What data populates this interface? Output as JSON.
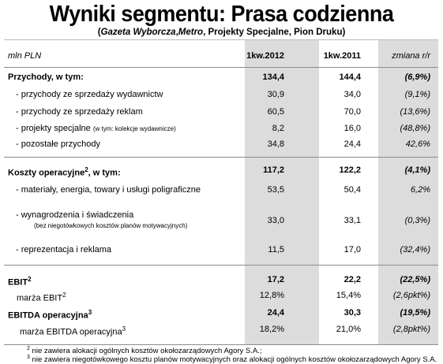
{
  "title": "Wyniki segmentu: Prasa codzienna",
  "subtitle": {
    "open": "(",
    "gw": "Gazeta Wyborcza",
    "sep1": ",",
    "metro": "Metro",
    "rest": ", Projekty Specjalne, Pion Druku)"
  },
  "header": {
    "unit": "mln PLN",
    "col1": "1kw.2012",
    "col2": "1kw.2011",
    "col3": "zmiana r/r"
  },
  "rows": {
    "przychody": {
      "label": "Przychody, w tym:",
      "v1": "134,4",
      "v2": "144,4",
      "v3": "(6,9%)"
    },
    "wydawnictw": {
      "label": "- przychody ze sprzedaży wydawnictw",
      "v1": "30,9",
      "v2": "34,0",
      "v3": "(9,1%)"
    },
    "reklam": {
      "label": "- przychody ze sprzedaży reklam",
      "v1": "60,5",
      "v2": "70,0",
      "v3": "(13,6%)"
    },
    "projekty": {
      "label": "- projekty specjalne",
      "note": "(w tym: kolekcje wydawnicze)",
      "v1": "8,2",
      "v2": "16,0",
      "v3": "(48,8%)"
    },
    "pozostale": {
      "label": "- pozostałe przychody",
      "v1": "34,8",
      "v2": "24,4",
      "v3": "42,6%"
    },
    "koszty": {
      "label": "Koszty operacyjne",
      "sup": "2",
      "label_tail": ", w tym:",
      "v1": "117,2",
      "v2": "122,2",
      "v3": "(4,1%)"
    },
    "materialy": {
      "label": "- materiały, energia, towary i usługi poligraficzne",
      "v1": "53,5",
      "v2": "50,4",
      "v3": "6,2%"
    },
    "wynagrodzenia": {
      "label": "- wynagrodzenia i świadczenia",
      "note": "(bez niegotówkowych kosztów planów motywacyjnych)",
      "v1": "33,0",
      "v2": "33,1",
      "v3": "(0,3%)"
    },
    "reprezentacja": {
      "label": "- reprezentacja i reklama",
      "v1": "11,5",
      "v2": "17,0",
      "v3": "(32,4%)"
    },
    "ebit": {
      "label": "EBIT",
      "sup": "2",
      "v1": "17,2",
      "v2": "22,2",
      "v3": "(22,5%)"
    },
    "marza_ebit": {
      "label": "marża EBIT",
      "sup": "2",
      "v1": "12,8%",
      "v2": "15,4%",
      "v3": "(2,6pkt%)"
    },
    "ebitda": {
      "label": "EBITDA operacyjna",
      "sup": "3",
      "v1": "24,4",
      "v2": "30,3",
      "v3": "(19,5%)"
    },
    "marza_ebitda": {
      "label": "marża EBITDA operacyjna",
      "sup": "3",
      "v1": "18,2%",
      "v2": "21,0%",
      "v3": "(2,8pkt%)"
    }
  },
  "footnotes": {
    "f2_mark": "2",
    "f2": " nie zawiera alokacji ogólnych kosztów okołozarządowych Agory S.A.;",
    "f3_mark": "3",
    "f3": " nie zawiera niegotówkowego kosztu planów motywacyjnych oraz alokacji ogólnych kosztów okołozarządowych Agory S.A."
  }
}
